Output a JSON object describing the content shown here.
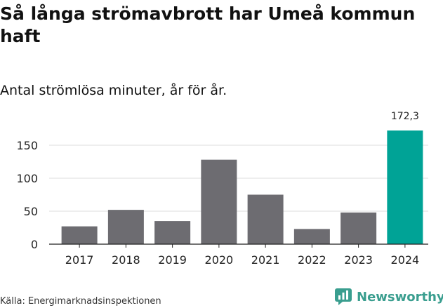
{
  "title": "Så långa strömavbrott har Umeå kommun haft",
  "subtitle": "Antal strömlösa minuter, år för år.",
  "source": "Källa: Energimarknadsinspektionen",
  "brand": {
    "name": "Newsworthy",
    "icon": "bar-chart-logo-icon",
    "color": "#3a9e8f"
  },
  "colors": {
    "bar": "#6d6c71",
    "highlight": "#00a396",
    "grid": "#dddddd",
    "axis": "#222222"
  },
  "chart_data": {
    "type": "bar",
    "title": "Så långa strömavbrott har Umeå kommun haft",
    "subtitle": "Antal strömlösa minuter, år för år.",
    "xlabel": "",
    "ylabel": "",
    "categories": [
      "2017",
      "2018",
      "2019",
      "2020",
      "2021",
      "2022",
      "2023",
      "2024"
    ],
    "values": [
      27,
      52,
      35,
      128,
      75,
      23,
      48,
      172.3
    ],
    "highlight_index": 7,
    "highlight_label": "172,3",
    "ylim": [
      0,
      172.3
    ],
    "yticks": [
      0,
      50,
      100,
      150
    ],
    "ytick_labels": [
      "0",
      "50",
      "100",
      "150"
    ],
    "grid": true
  }
}
